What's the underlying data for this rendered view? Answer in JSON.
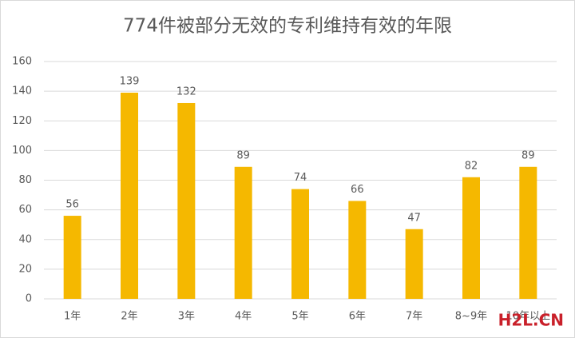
{
  "chart_data": {
    "type": "bar",
    "title": "774件被部分无效的专利维持有效的年限",
    "categories": [
      "1年",
      "2年",
      "3年",
      "4年",
      "5年",
      "6年",
      "7年",
      "8~9年",
      "10年以上"
    ],
    "values": [
      56,
      139,
      132,
      89,
      74,
      66,
      47,
      82,
      89
    ],
    "color": "#f5b800",
    "ylim": [
      0,
      160
    ],
    "yticks": [
      0,
      20,
      40,
      60,
      80,
      100,
      120,
      140,
      160
    ],
    "grid": true
  },
  "watermark": "H2L.CN"
}
